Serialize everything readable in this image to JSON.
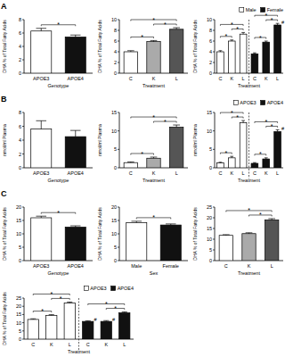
{
  "chart_data": [
    {
      "type": "bar",
      "panel": "A",
      "ylabel": "DHA % of Total Fatty Acids",
      "xlabel": "Genotype",
      "categories": [
        "APOE3",
        "APOE4"
      ],
      "values": [
        6.3,
        5.4
      ],
      "errors": [
        0.4,
        0.3
      ],
      "colors": [
        "#ffffff",
        "#111111"
      ],
      "ylim": [
        0,
        8
      ],
      "yticks": [
        0,
        2,
        4,
        6,
        8
      ],
      "annotations": [
        {
          "text": "*",
          "bars": [
            0,
            1
          ]
        }
      ]
    },
    {
      "type": "bar",
      "ylabel": "DHA % of Total Fatty Acids",
      "xlabel": "Treatment",
      "categories": [
        "C",
        "K",
        "L"
      ],
      "values": [
        4.0,
        5.9,
        8.2
      ],
      "errors": [
        0.2,
        0.2,
        0.3
      ],
      "colors": [
        "#ffffff",
        "#aaaaaa",
        "#555555"
      ],
      "ylim": [
        0,
        10
      ],
      "yticks": [
        0,
        2,
        4,
        6,
        8,
        10
      ],
      "annotations": [
        {
          "text": "*",
          "bars": [
            0,
            1
          ]
        },
        {
          "text": "*",
          "bars": [
            1,
            2
          ]
        },
        {
          "text": "*",
          "bars": [
            0,
            2
          ]
        }
      ]
    },
    {
      "type": "bar",
      "ylabel": "DHA % of Total Fatty Acids",
      "xlabel": "Treatment",
      "legend": "top-right",
      "categories": [
        "C",
        "K",
        "L",
        "C",
        "K",
        "L"
      ],
      "series": [
        {
          "name": "Male",
          "color": "#ffffff",
          "values": [
            4.0,
            6.0,
            7.3,
            null,
            null,
            null
          ],
          "errors": [
            0.2,
            0.2,
            0.3,
            null,
            null,
            null
          ]
        },
        {
          "name": "Female",
          "color": "#111111",
          "values": [
            null,
            null,
            null,
            3.6,
            5.8,
            9.0
          ],
          "errors": [
            null,
            null,
            null,
            0.2,
            0.2,
            0.3
          ]
        }
      ],
      "ylim": [
        0,
        10
      ],
      "yticks": [
        0,
        2,
        4,
        6,
        8,
        10
      ],
      "annotations": [
        {
          "text": "*",
          "bars": [
            0,
            1
          ]
        },
        {
          "text": "*",
          "bars": [
            1,
            2
          ]
        },
        {
          "text": "*",
          "bars": [
            0,
            2
          ]
        },
        {
          "text": "*",
          "bars": [
            3,
            4
          ]
        },
        {
          "text": "*",
          "bars": [
            4,
            5
          ]
        },
        {
          "text": "*",
          "bars": [
            3,
            5
          ]
        },
        {
          "text": "#",
          "bars": [
            5
          ]
        }
      ]
    },
    {
      "type": "bar",
      "panel": "B",
      "ylabel": "nmol/ml Plasma",
      "xlabel": "Genotype",
      "categories": [
        "APOE3",
        "APOE4"
      ],
      "values": [
        5.6,
        4.5
      ],
      "errors": [
        1.2,
        0.9
      ],
      "colors": [
        "#ffffff",
        "#111111"
      ],
      "ylim": [
        0,
        8
      ],
      "yticks": [
        0,
        2,
        4,
        6,
        8
      ],
      "annotations": []
    },
    {
      "type": "bar",
      "ylabel": "nmol/ml Plasma",
      "xlabel": "Treatment",
      "categories": [
        "C",
        "K",
        "L"
      ],
      "values": [
        1.4,
        2.6,
        11.0
      ],
      "errors": [
        0.2,
        0.3,
        0.6
      ],
      "colors": [
        "#ffffff",
        "#aaaaaa",
        "#555555"
      ],
      "ylim": [
        0,
        15
      ],
      "yticks": [
        0,
        5,
        10,
        15
      ],
      "annotations": [
        {
          "text": "*",
          "bars": [
            0,
            1
          ]
        },
        {
          "text": "*",
          "bars": [
            1,
            2
          ]
        },
        {
          "text": "*",
          "bars": [
            0,
            2
          ]
        }
      ]
    },
    {
      "type": "bar",
      "ylabel": "nmol/ml Plasma",
      "xlabel": "Treatment",
      "legend": "top-right",
      "categories": [
        "C",
        "K",
        "L",
        "C",
        "K",
        "L"
      ],
      "series": [
        {
          "name": "APOE3",
          "color": "#ffffff",
          "values": [
            1.3,
            2.7,
            12.2,
            null,
            null,
            null
          ],
          "errors": [
            0.2,
            0.4,
            0.6,
            null,
            null,
            null
          ]
        },
        {
          "name": "APOE4",
          "color": "#111111",
          "values": [
            null,
            null,
            null,
            1.2,
            2.4,
            9.8
          ],
          "errors": [
            null,
            null,
            null,
            0.2,
            0.3,
            0.5
          ]
        }
      ],
      "ylim": [
        0,
        15
      ],
      "yticks": [
        0,
        5,
        10,
        15
      ],
      "annotations": [
        {
          "text": "*",
          "bars": [
            0,
            1
          ]
        },
        {
          "text": "*",
          "bars": [
            1,
            2
          ]
        },
        {
          "text": "*",
          "bars": [
            0,
            2
          ]
        },
        {
          "text": "*",
          "bars": [
            3,
            4
          ]
        },
        {
          "text": "*",
          "bars": [
            4,
            5
          ]
        },
        {
          "text": "*",
          "bars": [
            3,
            5
          ]
        },
        {
          "text": "#",
          "bars": [
            5
          ]
        }
      ]
    },
    {
      "type": "bar",
      "panel": "C",
      "ylabel": "DHA % of Total Fatty Acids",
      "xlabel": "Genotype",
      "categories": [
        "APOE3",
        "APOE4"
      ],
      "values": [
        16.0,
        12.5
      ],
      "errors": [
        0.6,
        0.5
      ],
      "colors": [
        "#ffffff",
        "#111111"
      ],
      "ylim": [
        0,
        20
      ],
      "yticks": [
        0,
        5,
        10,
        15,
        20
      ],
      "annotations": [
        {
          "text": "*",
          "bars": [
            0,
            1
          ]
        }
      ]
    },
    {
      "type": "bar",
      "ylabel": "DHA % of Total Fatty Acids",
      "xlabel": "Sex",
      "categories": [
        "Male",
        "Female"
      ],
      "values": [
        14.2,
        13.3
      ],
      "errors": [
        0.5,
        0.4
      ],
      "colors": [
        "#ffffff",
        "#111111"
      ],
      "ylim": [
        0,
        20
      ],
      "yticks": [
        0,
        5,
        10,
        15,
        20
      ],
      "annotations": [
        {
          "text": "*",
          "bars": [
            0,
            1
          ]
        }
      ]
    },
    {
      "type": "bar",
      "ylabel": "DHA % of Total Fatty Acids",
      "xlabel": "Treatment",
      "categories": [
        "C",
        "K",
        "L"
      ],
      "values": [
        11.8,
        12.6,
        19.0
      ],
      "errors": [
        0.3,
        0.4,
        0.6
      ],
      "colors": [
        "#ffffff",
        "#aaaaaa",
        "#555555"
      ],
      "ylim": [
        0,
        25
      ],
      "yticks": [
        0,
        5,
        10,
        15,
        20,
        25
      ],
      "annotations": [
        {
          "text": "*",
          "bars": [
            1,
            2
          ]
        },
        {
          "text": "*",
          "bars": [
            0,
            2
          ]
        }
      ]
    },
    {
      "type": "bar",
      "ylabel": "DHA % of Total Fatty Acids",
      "xlabel": "Treatment",
      "legend": "top-right",
      "categories": [
        "C",
        "K",
        "L",
        "C",
        "K",
        "L"
      ],
      "series": [
        {
          "name": "APOE3",
          "color": "#ffffff",
          "values": [
            12.0,
            14.5,
            22.0,
            null,
            null,
            null
          ],
          "errors": [
            0.4,
            0.4,
            0.6,
            null,
            null,
            null
          ]
        },
        {
          "name": "APOE4",
          "color": "#111111",
          "values": [
            null,
            null,
            null,
            10.8,
            10.8,
            16.0
          ],
          "errors": [
            null,
            null,
            null,
            0.4,
            0.5,
            0.6
          ]
        }
      ],
      "ylim": [
        0,
        25
      ],
      "yticks": [
        0,
        5,
        10,
        15,
        20,
        25
      ],
      "annotations": [
        {
          "text": "*",
          "bars": [
            0,
            1
          ]
        },
        {
          "text": "*",
          "bars": [
            1,
            2
          ]
        },
        {
          "text": "*",
          "bars": [
            0,
            2
          ]
        },
        {
          "text": "#",
          "bars": [
            3
          ]
        },
        {
          "text": "#",
          "bars": [
            4
          ]
        },
        {
          "text": "*",
          "bars": [
            4,
            5
          ]
        },
        {
          "text": "*",
          "bars": [
            3,
            5
          ]
        }
      ]
    }
  ]
}
